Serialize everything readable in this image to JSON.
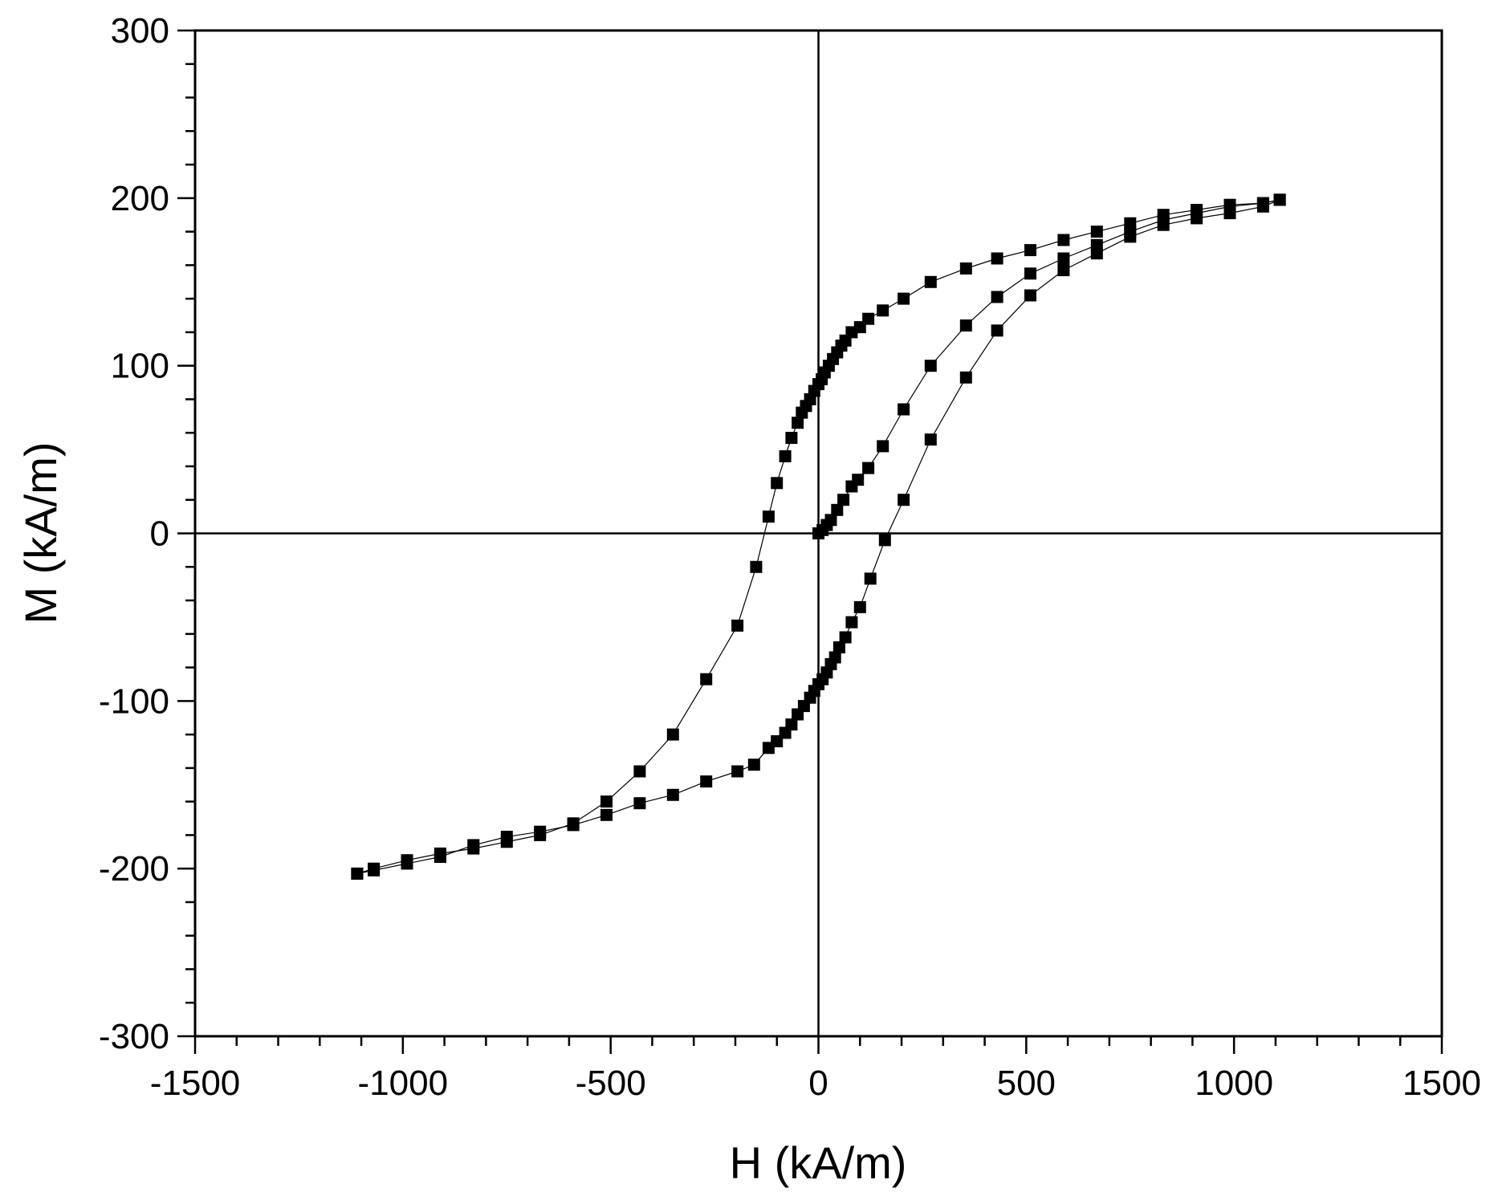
{
  "chart_data": {
    "type": "scatter",
    "xlabel": "H (kA/m)",
    "ylabel": "M (kA/m)",
    "xlim": [
      -1500,
      1500
    ],
    "ylim": [
      -300,
      300
    ],
    "xticks": [
      -1500,
      -1000,
      -500,
      0,
      500,
      1000,
      1500
    ],
    "yticks": [
      -300,
      -200,
      -100,
      0,
      100,
      200,
      300
    ],
    "xtick_labels": [
      "-1500",
      "-1000",
      "-500",
      "0",
      "500",
      "1000",
      "1500"
    ],
    "ytick_labels": [
      "-300",
      "-200",
      "-100",
      "0",
      "100",
      "200",
      "300"
    ],
    "zero_lines": true,
    "grid": false,
    "marker": "square",
    "series": [
      {
        "values_desc": "initial magnetization curve",
        "x": [
          0,
          10,
          20,
          30,
          45,
          60,
          80,
          95,
          120,
          155,
          205,
          270,
          355,
          430,
          510,
          590,
          670,
          750,
          830,
          910,
          990,
          1070,
          1110
        ],
        "y": [
          0,
          2,
          5,
          8,
          14,
          20,
          28,
          32,
          39,
          52,
          74,
          100,
          124,
          141,
          155,
          164,
          172,
          180,
          187,
          191,
          195,
          197,
          199
        ]
      },
      {
        "values_desc": "descending branch",
        "x": [
          1110,
          1070,
          990,
          910,
          830,
          750,
          670,
          590,
          510,
          430,
          355,
          270,
          205,
          155,
          120,
          100,
          80,
          65,
          55,
          45,
          35,
          25,
          15,
          8,
          0,
          -10,
          -20,
          -30,
          -40,
          -50,
          -65,
          -80,
          -100,
          -120,
          -150,
          -195,
          -270,
          -350,
          -430,
          -510,
          -590,
          -670,
          -750,
          -830,
          -910,
          -990,
          -1070,
          -1110
        ],
        "y": [
          199,
          197,
          196,
          193,
          190,
          185,
          180,
          175,
          169,
          164,
          158,
          150,
          140,
          133,
          128,
          123,
          120,
          115,
          112,
          108,
          104,
          100,
          96,
          92,
          89,
          85,
          80,
          76,
          72,
          66,
          57,
          46,
          30,
          10,
          -20,
          -55,
          -87,
          -120,
          -142,
          -160,
          -173,
          -180,
          -184,
          -188,
          -191,
          -195,
          -200,
          -203
        ]
      },
      {
        "values_desc": "ascending branch",
        "x": [
          -1110,
          -1070,
          -990,
          -910,
          -830,
          -750,
          -670,
          -590,
          -510,
          -430,
          -350,
          -270,
          -195,
          -155,
          -120,
          -100,
          -80,
          -65,
          -50,
          -35,
          -20,
          -10,
          0,
          10,
          20,
          30,
          40,
          50,
          65,
          80,
          100,
          125,
          160,
          205,
          270,
          355,
          430,
          510,
          590,
          670,
          750,
          830,
          910,
          990,
          1070,
          1110
        ],
        "y": [
          -203,
          -201,
          -197,
          -193,
          -186,
          -181,
          -178,
          -174,
          -168,
          -161,
          -156,
          -148,
          -142,
          -138,
          -128,
          -124,
          -119,
          -114,
          -108,
          -103,
          -98,
          -94,
          -90,
          -87,
          -83,
          -78,
          -74,
          -68,
          -62,
          -53,
          -44,
          -27,
          -4,
          20,
          56,
          93,
          121,
          142,
          157,
          167,
          177,
          184,
          188,
          191,
          195,
          199
        ]
      }
    ]
  }
}
